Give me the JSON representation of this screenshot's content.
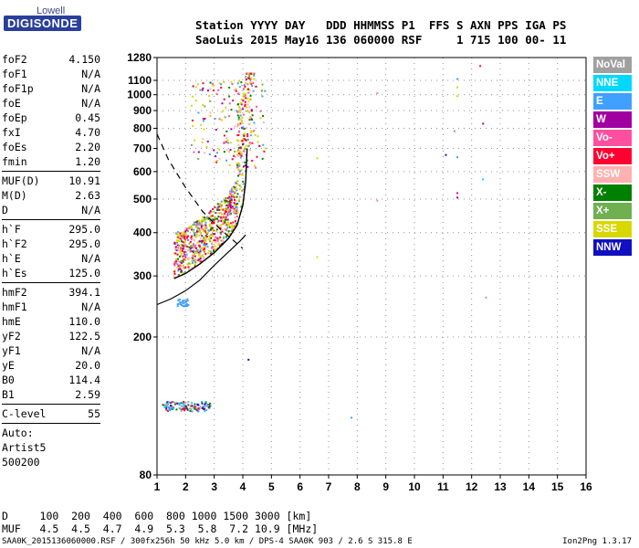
{
  "logo": {
    "line1": "Lowell",
    "line2": "DIGISONDE"
  },
  "header": {
    "line1": "Station YYYY DAY   DDD HHMMSS P1  FFS S AXN PPS IGA PS",
    "line2": "SaoLuis 2015 May16 136 060000 RSF     1 715 100 00- 11"
  },
  "params": [
    {
      "label": "foF2",
      "value": "4.150"
    },
    {
      "label": "foF1",
      "value": "N/A"
    },
    {
      "label": "foF1p",
      "value": "N/A"
    },
    {
      "label": "foE",
      "value": "N/A"
    },
    {
      "label": "foEp",
      "value": "0.45"
    },
    {
      "label": "fxI",
      "value": "4.70"
    },
    {
      "label": "foEs",
      "value": "2.20"
    },
    {
      "label": "fmin",
      "value": "1.20"
    },
    {
      "sep": true
    },
    {
      "label": "MUF(D)",
      "value": "10.91"
    },
    {
      "label": "M(D)",
      "value": "2.63"
    },
    {
      "label": "D",
      "value": "N/A"
    },
    {
      "sep": true
    },
    {
      "label": "h`F",
      "value": "295.0"
    },
    {
      "label": "h`F2",
      "value": "295.0"
    },
    {
      "label": "h`E",
      "value": "N/A"
    },
    {
      "label": "h`Es",
      "value": "125.0"
    },
    {
      "sep": true
    },
    {
      "label": "hmF2",
      "value": "394.1"
    },
    {
      "label": "hmF1",
      "value": "N/A"
    },
    {
      "label": "hmE",
      "value": "110.0"
    },
    {
      "label": "yF2",
      "value": "122.5"
    },
    {
      "label": "yF1",
      "value": "N/A"
    },
    {
      "label": "yE",
      "value": "20.0"
    },
    {
      "label": "B0",
      "value": "114.4"
    },
    {
      "label": "B1",
      "value": "2.59"
    },
    {
      "sep": true
    },
    {
      "label": "C-level",
      "value": "55"
    },
    {
      "sep": true
    }
  ],
  "auto_lines": [
    "Auto:",
    "Artist5",
    "500200"
  ],
  "legend": [
    {
      "label": "NoVal",
      "color": "#a0a0a0"
    },
    {
      "label": "NNE",
      "color": "#00d8ff"
    },
    {
      "label": "E",
      "color": "#3fa0ff"
    },
    {
      "label": "W",
      "color": "#a000a0"
    },
    {
      "label": "Vo-",
      "color": "#ff50a0"
    },
    {
      "label": "Vo+",
      "color": "#ff0030"
    },
    {
      "label": "SSW",
      "color": "#ffb0b0"
    },
    {
      "label": "X-",
      "color": "#008000"
    },
    {
      "label": "X+",
      "color": "#70b050"
    },
    {
      "label": "SSE",
      "color": "#d8d800"
    },
    {
      "label": "NNW",
      "color": "#1010c0"
    }
  ],
  "bottom": {
    "line1": "D     100  200  400  600  800 1000 1500 3000 [km]",
    "line2": "MUF   4.5  4.5  4.7  4.9  5.3  5.8  7.2 10.9 [MHz]"
  },
  "footer": "SAA0K_2015136060000.RSF / 300fx256h 50 kHz 5.0 km / DPS-4 SAA0K 903 / 2.6 S 315.8 E",
  "version": "Ion2Png 1.3.17",
  "chart_data": {
    "type": "scatter",
    "xlim": [
      1,
      16
    ],
    "ylim": [
      80,
      1280
    ],
    "x_ticks": [
      1,
      2,
      3,
      4,
      5,
      6,
      7,
      8,
      9,
      10,
      11,
      12,
      13,
      14,
      15,
      16
    ],
    "y_ticks": [
      80,
      200,
      300,
      400,
      500,
      600,
      700,
      800,
      900,
      1000,
      1100,
      1280
    ],
    "y_scale": "log",
    "grid": true,
    "traces": {
      "f2_trace": [
        [
          1.6,
          295
        ],
        [
          2.0,
          305
        ],
        [
          2.5,
          325
        ],
        [
          3.0,
          350
        ],
        [
          3.5,
          385
        ],
        [
          3.8,
          420
        ],
        [
          4.0,
          480
        ],
        [
          4.1,
          560
        ],
        [
          4.15,
          700
        ]
      ],
      "es_trace": [
        [
          1.2,
          125
        ],
        [
          1.5,
          126
        ],
        [
          2.0,
          126
        ],
        [
          2.5,
          127
        ],
        [
          2.8,
          127
        ]
      ],
      "profile_line": [
        [
          1.0,
          248
        ],
        [
          1.5,
          258
        ],
        [
          2.0,
          272
        ],
        [
          2.5,
          292
        ],
        [
          3.0,
          322
        ],
        [
          3.5,
          352
        ],
        [
          3.9,
          378
        ],
        [
          4.1,
          394
        ]
      ],
      "dashed_line": [
        [
          1.0,
          770
        ],
        [
          1.4,
          650
        ],
        [
          2.0,
          540
        ],
        [
          2.6,
          460
        ],
        [
          3.2,
          410
        ],
        [
          4.0,
          360
        ]
      ]
    },
    "scatter_points": [
      {
        "x": 12.3,
        "y": 1210,
        "c": "#ff0070"
      },
      {
        "x": 11.5,
        "y": 1110,
        "c": "#3fa0ff"
      },
      {
        "x": 8.7,
        "y": 1010,
        "c": "#ff80b0"
      },
      {
        "x": 11.5,
        "y": 1050,
        "c": "#d8d800"
      },
      {
        "x": 11.5,
        "y": 990,
        "c": "#d8d800"
      },
      {
        "x": 12.4,
        "y": 825,
        "c": "#a000a0"
      },
      {
        "x": 11.4,
        "y": 785,
        "c": "#70b050"
      },
      {
        "x": 11.1,
        "y": 670,
        "c": "#1010c0"
      },
      {
        "x": 11.5,
        "y": 660,
        "c": "#3fa0ff"
      },
      {
        "x": 6.6,
        "y": 655,
        "c": "#d8d800"
      },
      {
        "x": 12.4,
        "y": 570,
        "c": "#00d8ff"
      },
      {
        "x": 11.5,
        "y": 520,
        "c": "#ff0070"
      },
      {
        "x": 11.5,
        "y": 505,
        "c": "#a000a0"
      },
      {
        "x": 8.7,
        "y": 495,
        "c": "#ff80b0"
      },
      {
        "x": 6.6,
        "y": 340,
        "c": "#d8d800"
      },
      {
        "x": 12.5,
        "y": 260,
        "c": "#ff80b0"
      },
      {
        "x": 4.2,
        "y": 172,
        "c": "#1010c0"
      },
      {
        "x": 7.8,
        "y": 117,
        "c": "#3fa0ff"
      }
    ]
  }
}
